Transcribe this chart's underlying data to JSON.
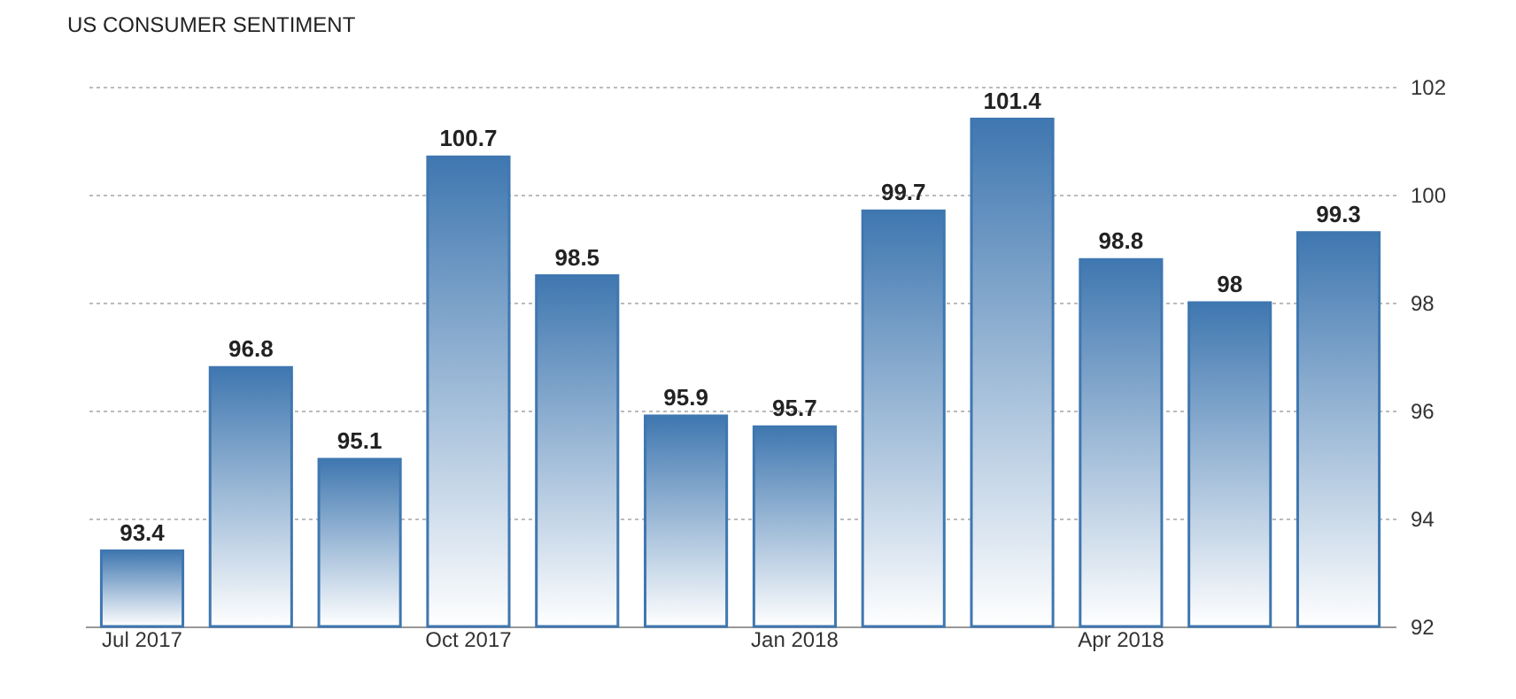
{
  "chart_data": {
    "type": "bar",
    "title": "US CONSUMER SENTIMENT",
    "categories": [
      "Jul 2017",
      null,
      null,
      "Oct 2017",
      null,
      null,
      "Jan 2018",
      null,
      null,
      "Apr 2018",
      null,
      null
    ],
    "values": [
      93.4,
      96.8,
      95.1,
      100.7,
      98.5,
      95.9,
      95.7,
      99.7,
      101.4,
      98.8,
      98,
      99.3
    ],
    "color": "#3f77b0",
    "ylim": [
      92,
      102
    ],
    "yticks": [
      92,
      94,
      96,
      98,
      100,
      102
    ],
    "grid": "y",
    "data_labels": true
  }
}
